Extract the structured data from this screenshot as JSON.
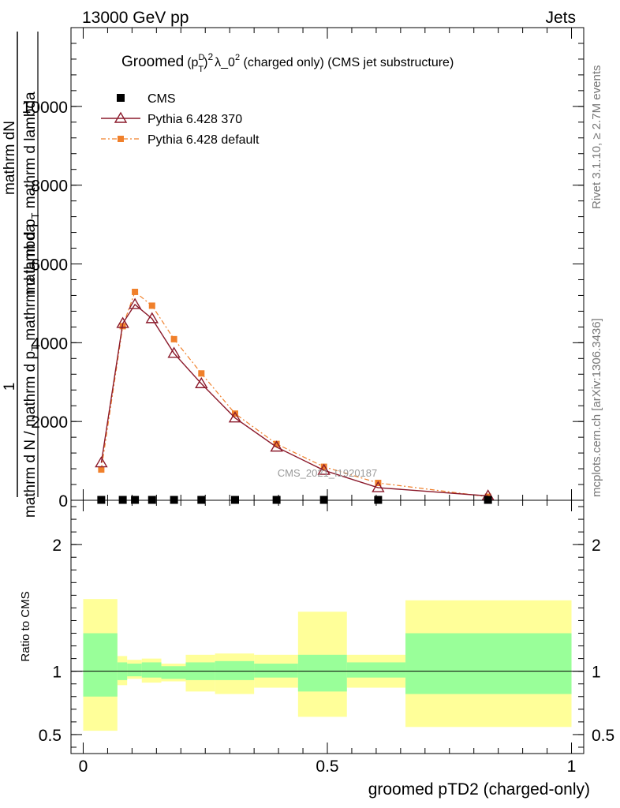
{
  "header": {
    "left": "13000 GeV pp",
    "right": "Jets",
    "title_main": "Groomed",
    "title_sup_d": "D",
    "title_sub_t": "T",
    "title_rest": "λ_0",
    "title_tail": "  (charged only) (CMS jet substructure)",
    "title_p": "p",
    "title_sq": "2"
  },
  "side": {
    "rivet": "Rivet 3.1.10, ≥ 2.7M events",
    "mcplots": "mcplots.cern.ch [arXiv:1306.3436]"
  },
  "watermark": "CMS_2021_I1920187",
  "ylabel_top_parts": [
    "mathrm d",
    "N"
  ],
  "ylabel_main": "mathrm d p",
  "ylabel_main2": " mathrm d lambda",
  "ylabel_one": "1",
  "ylabel_bottom": "mathrm d N / mathrm d p",
  "ylabel_bottom2": " mathrm d lambda",
  "ratio_ylabel": "Ratio to CMS",
  "xlabel": "groomed pTD2 (charged-only)",
  "legend": [
    {
      "name": "CMS",
      "color": "#000000"
    },
    {
      "name": "Pythia 6.428 370",
      "color": "#8b1a2b"
    },
    {
      "name": "Pythia 6.428 default",
      "color": "#f0802b"
    }
  ],
  "chart_data": {
    "type": "line",
    "x_ticks": [
      "0",
      "0.5",
      "1"
    ],
    "xlim": [
      -0.025,
      1.025
    ],
    "main": {
      "ylim": [
        0,
        12000
      ],
      "y_ticks": [
        "0",
        "2000",
        "4000",
        "6000",
        "8000",
        "10000"
      ],
      "series": [
        {
          "name": "CMS",
          "x": [
            0.037,
            0.081,
            0.106,
            0.141,
            0.186,
            0.242,
            0.311,
            0.396,
            0.493,
            0.604,
            0.829
          ],
          "y": [
            10,
            10,
            10,
            10,
            10,
            10,
            10,
            10,
            10,
            10,
            10
          ]
        },
        {
          "name": "Pythia 6.428 370",
          "x": [
            0.037,
            0.081,
            0.106,
            0.141,
            0.186,
            0.242,
            0.311,
            0.396,
            0.493,
            0.604,
            0.829
          ],
          "y": [
            950,
            4490,
            4970,
            4610,
            3730,
            2960,
            2090,
            1350,
            760,
            320,
            110
          ]
        },
        {
          "name": "Pythia 6.428 default",
          "x": [
            0.037,
            0.081,
            0.106,
            0.141,
            0.186,
            0.242,
            0.311,
            0.396,
            0.493,
            0.604,
            0.829
          ],
          "y": [
            780,
            4420,
            5290,
            4940,
            4090,
            3220,
            2200,
            1430,
            850,
            440,
            90
          ]
        }
      ]
    },
    "ratio": {
      "ylim": [
        0.35,
        2.35
      ],
      "y_ticks": [
        "0.5",
        "1",
        "2"
      ],
      "bins": [
        {
          "lo": 0.0,
          "hi": 0.07,
          "in_lo": 0.8,
          "in_hi": 1.3,
          "out_lo": 0.53,
          "out_hi": 1.57
        },
        {
          "lo": 0.07,
          "hi": 0.09,
          "in_lo": 0.93,
          "in_hi": 1.07,
          "out_lo": 0.89,
          "out_hi": 1.12
        },
        {
          "lo": 0.09,
          "hi": 0.12,
          "in_lo": 0.96,
          "in_hi": 1.06,
          "out_lo": 0.94,
          "out_hi": 1.09
        },
        {
          "lo": 0.12,
          "hi": 0.16,
          "in_lo": 0.95,
          "in_hi": 1.07,
          "out_lo": 0.91,
          "out_hi": 1.1
        },
        {
          "lo": 0.16,
          "hi": 0.21,
          "in_lo": 0.94,
          "in_hi": 1.04,
          "out_lo": 0.92,
          "out_hi": 1.06
        },
        {
          "lo": 0.21,
          "hi": 0.27,
          "in_lo": 0.93,
          "in_hi": 1.07,
          "out_lo": 0.84,
          "out_hi": 1.13
        },
        {
          "lo": 0.27,
          "hi": 0.35,
          "in_lo": 0.93,
          "in_hi": 1.08,
          "out_lo": 0.82,
          "out_hi": 1.14
        },
        {
          "lo": 0.35,
          "hi": 0.44,
          "in_lo": 0.95,
          "in_hi": 1.06,
          "out_lo": 0.87,
          "out_hi": 1.13
        },
        {
          "lo": 0.44,
          "hi": 0.54,
          "in_lo": 0.84,
          "in_hi": 1.13,
          "out_lo": 0.64,
          "out_hi": 1.47
        },
        {
          "lo": 0.54,
          "hi": 0.66,
          "in_lo": 0.95,
          "in_hi": 1.07,
          "out_lo": 0.87,
          "out_hi": 1.13
        },
        {
          "lo": 0.66,
          "hi": 1.0,
          "in_lo": 0.82,
          "in_hi": 1.3,
          "out_lo": 0.56,
          "out_hi": 1.56
        }
      ]
    }
  }
}
